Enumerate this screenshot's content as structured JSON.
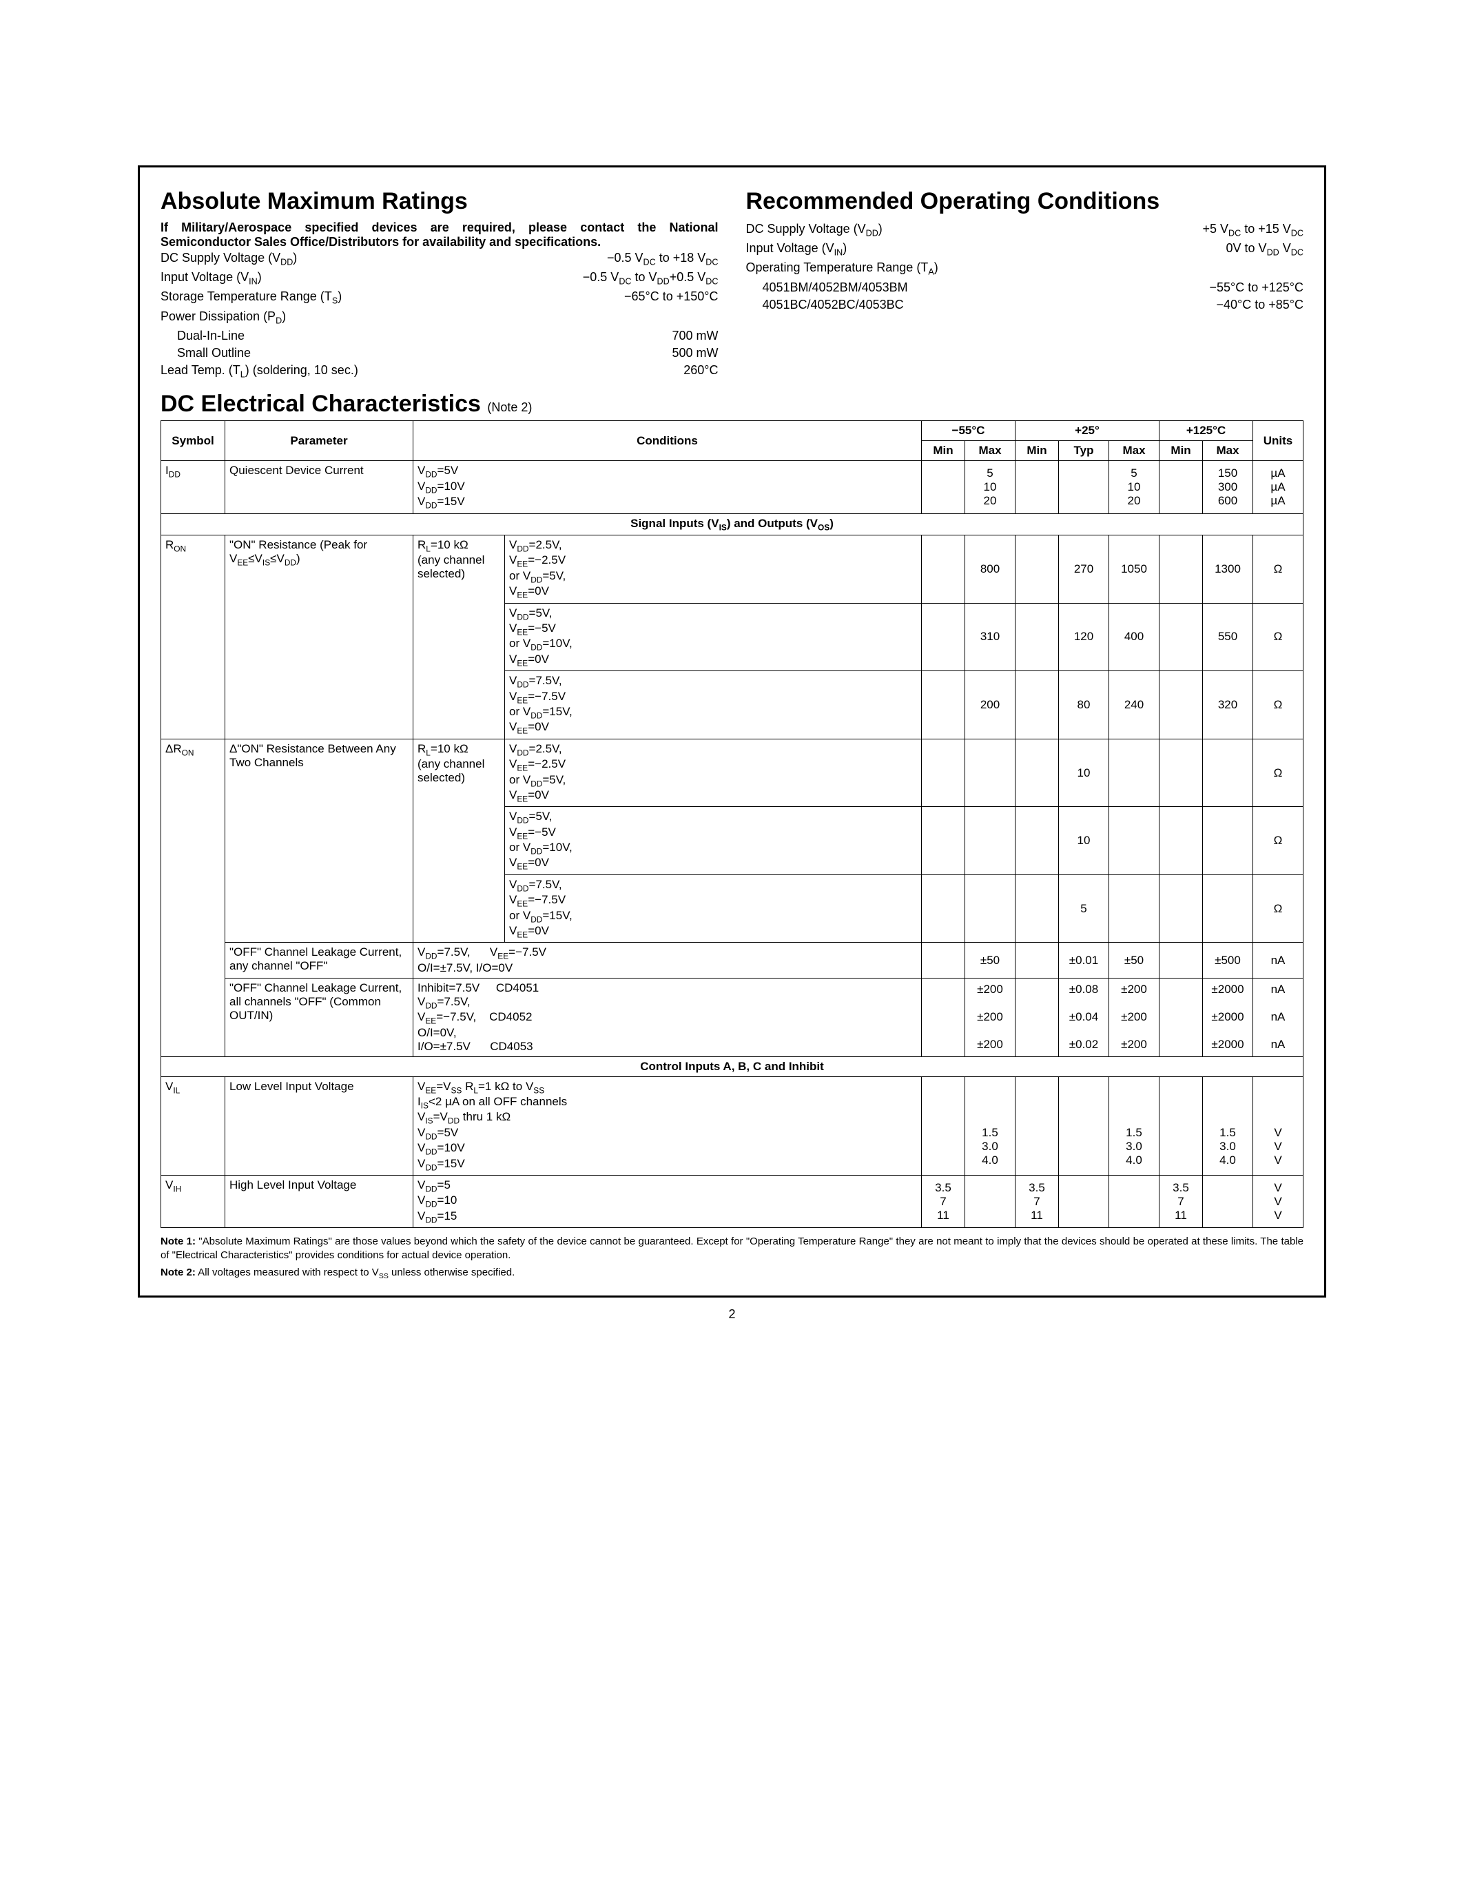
{
  "amr": {
    "title": "Absolute Maximum Ratings",
    "intro": "If Military/Aerospace specified devices are required, please contact the National Semiconductor Sales Office/Distributors for availability and specifications.",
    "rows": [
      {
        "label": "DC Supply Voltage (V<sub>DD</sub>)",
        "value": "−0.5 V<sub>DC</sub> to +18 V<sub>DC</sub>"
      },
      {
        "label": "Input Voltage (V<sub>IN</sub>)",
        "value": "−0.5 V<sub>DC</sub> to V<sub>DD</sub>+0.5 V<sub>DC</sub>"
      },
      {
        "label": "Storage Temperature Range (T<sub>S</sub>)",
        "value": "−65°C to +150°C"
      },
      {
        "label": "Power Dissipation (P<sub>D</sub>)",
        "value": ""
      },
      {
        "label": "Dual-In-Line",
        "value": "700 mW",
        "indent": true
      },
      {
        "label": "Small Outline",
        "value": "500 mW",
        "indent": true
      },
      {
        "label": "Lead Temp. (T<sub>L</sub>) (soldering, 10 sec.)",
        "value": "260°C"
      }
    ]
  },
  "roc": {
    "title": "Recommended Operating Conditions",
    "rows": [
      {
        "label": "DC Supply Voltage (V<sub>DD</sub>)",
        "value": "+5 V<sub>DC</sub> to +15 V<sub>DC</sub>"
      },
      {
        "label": "Input Voltage (V<sub>IN</sub>)",
        "value": "0V to V<sub>DD</sub> V<sub>DC</sub>"
      },
      {
        "label": "Operating Temperature Range (T<sub>A</sub>)",
        "value": ""
      },
      {
        "label": "4051BM/4052BM/4053BM",
        "value": "−55°C to +125°C",
        "indent": true
      },
      {
        "label": "4051BC/4052BC/4053BC",
        "value": "−40°C to +85°C",
        "indent": true
      }
    ]
  },
  "dc": {
    "title": "DC Electrical Characteristics",
    "note": "(Note 2)",
    "headers": {
      "symbol": "Symbol",
      "parameter": "Parameter",
      "conditions": "Conditions",
      "t1": "−55°C",
      "t2": "+25°",
      "t3": "+125°C",
      "units": "Units",
      "min": "Min",
      "max": "Max",
      "typ": "Typ"
    },
    "section1": "Signal Inputs (V<sub>IS</sub>) and Outputs (V<sub>OS</sub>)",
    "section2": "Control Inputs A, B, C and Inhibit",
    "idd": {
      "symbol": "I<sub>DD</sub>",
      "parameter": "Quiescent Device Current",
      "conditions": "V<sub>DD</sub>=5V<br>V<sub>DD</sub>=10V<br>V<sub>DD</sub>=15V",
      "m55_max": "5<br>10<br>20",
      "p25_max": "5<br>10<br>20",
      "p125_max": "150<br>300<br>600",
      "units": "µA<br>µA<br>µA"
    },
    "ron": {
      "symbol": "R<sub>ON</sub>",
      "parameter": "\"ON\" Resistance (Peak for V<sub>EE</sub>≤V<sub>IS</sub>≤V<sub>DD</sub>)",
      "cond_a": "R<sub>L</sub>=10 kΩ<br>(any channel<br>selected)",
      "rows": [
        {
          "cond_b": "V<sub>DD</sub>=2.5V,<br>V<sub>EE</sub>=−2.5V<br>or V<sub>DD</sub>=5V,<br>V<sub>EE</sub>=0V",
          "m55_max": "800",
          "p25_typ": "270",
          "p25_max": "1050",
          "p125_max": "1300",
          "units": "Ω"
        },
        {
          "cond_b": "V<sub>DD</sub>=5V,<br>V<sub>EE</sub>=−5V<br>or V<sub>DD</sub>=10V,<br>V<sub>EE</sub>=0V",
          "m55_max": "310",
          "p25_typ": "120",
          "p25_max": "400",
          "p125_max": "550",
          "units": "Ω"
        },
        {
          "cond_b": "V<sub>DD</sub>=7.5V,<br>V<sub>EE</sub>=−7.5V<br>or V<sub>DD</sub>=15V,<br>V<sub>EE</sub>=0V",
          "m55_max": "200",
          "p25_typ": "80",
          "p25_max": "240",
          "p125_max": "320",
          "units": "Ω"
        }
      ]
    },
    "dron": {
      "symbol": "ΔR<sub>ON</sub>",
      "parameter": "Δ\"ON\" Resistance Between Any Two Channels",
      "cond_a": "R<sub>L</sub>=10 kΩ<br>(any channel<br>selected)",
      "rows": [
        {
          "cond_b": "V<sub>DD</sub>=2.5V,<br>V<sub>EE</sub>=−2.5V<br>or V<sub>DD</sub>=5V,<br>V<sub>EE</sub>=0V",
          "p25_typ": "10",
          "units": "Ω"
        },
        {
          "cond_b": "V<sub>DD</sub>=5V,<br>V<sub>EE</sub>=−5V<br>or V<sub>DD</sub>=10V,<br>V<sub>EE</sub>=0V",
          "p25_typ": "10",
          "units": "Ω"
        },
        {
          "cond_b": "V<sub>DD</sub>=7.5V,<br>V<sub>EE</sub>=−7.5V<br>or V<sub>DD</sub>=15V,<br>V<sub>EE</sub>=0V",
          "p25_typ": "5",
          "units": "Ω"
        }
      ]
    },
    "off1": {
      "parameter": "\"OFF\" Channel Leakage Current, any channel \"OFF\"",
      "conditions": "V<sub>DD</sub>=7.5V, &nbsp;&nbsp;&nbsp;&nbsp; V<sub>EE</sub>=−7.5V<br>O/I=±7.5V, I/O=0V",
      "m55_max": "±50",
      "p25_typ": "±0.01",
      "p25_max": "±50",
      "p125_max": "±500",
      "units": "nA"
    },
    "off2": {
      "parameter": "\"OFF\" Channel Leakage Current, all channels \"OFF\" (Common OUT/IN)",
      "conditions": "Inhibit=7.5V &nbsp;&nbsp;&nbsp; CD4051<br>V<sub>DD</sub>=7.5V,<br>V<sub>EE</sub>=−7.5V, &nbsp;&nbsp; CD4052<br>O/I=0V,<br>I/O=±7.5V &nbsp;&nbsp;&nbsp;&nbsp; CD4053",
      "m55_max": "±200<br><br>±200<br><br>±200",
      "p25_typ": "±0.08<br><br>±0.04<br><br>±0.02",
      "p25_max": "±200<br><br>±200<br><br>±200",
      "p125_max": "±2000<br><br>±2000<br><br>±2000",
      "units": "nA<br><br>nA<br><br>nA"
    },
    "vil": {
      "symbol": "V<sub>IL</sub>",
      "parameter": "Low Level Input Voltage",
      "conditions": "V<sub>EE</sub>=V<sub>SS</sub> R<sub>L</sub>=1 kΩ to V<sub>SS</sub><br>I<sub>IS</sub>&lt;2 µA on all OFF channels<br>V<sub>IS</sub>=V<sub>DD</sub> thru 1 kΩ<br>V<sub>DD</sub>=5V<br>V<sub>DD</sub>=10V<br>V<sub>DD</sub>=15V",
      "m55_max": "<br><br><br>1.5<br>3.0<br>4.0",
      "p25_max": "<br><br><br>1.5<br>3.0<br>4.0",
      "p125_max": "<br><br><br>1.5<br>3.0<br>4.0",
      "units": "<br><br><br>V<br>V<br>V"
    },
    "vih": {
      "symbol": "V<sub>IH</sub>",
      "parameter": "High Level Input Voltage",
      "conditions": "V<sub>DD</sub>=5<br>V<sub>DD</sub>=10<br>V<sub>DD</sub>=15",
      "m55_min": "3.5<br>7<br>11",
      "p25_min": "3.5<br>7<br>11",
      "p125_min": "3.5<br>7<br>11",
      "units": "V<br>V<br>V"
    }
  },
  "notes": {
    "n1": "<b>Note 1:</b> \"Absolute Maximum Ratings\" are those values beyond which the safety of the device cannot be guaranteed. Except for \"Operating Temperature Range\" they are not meant to imply that the devices should be operated at these limits. The table of \"Electrical Characteristics\" provides conditions for actual device operation.",
    "n2": "<b>Note 2:</b> All voltages measured with respect to V<sub>SS</sub> unless otherwise specified."
  },
  "page_number": "2"
}
